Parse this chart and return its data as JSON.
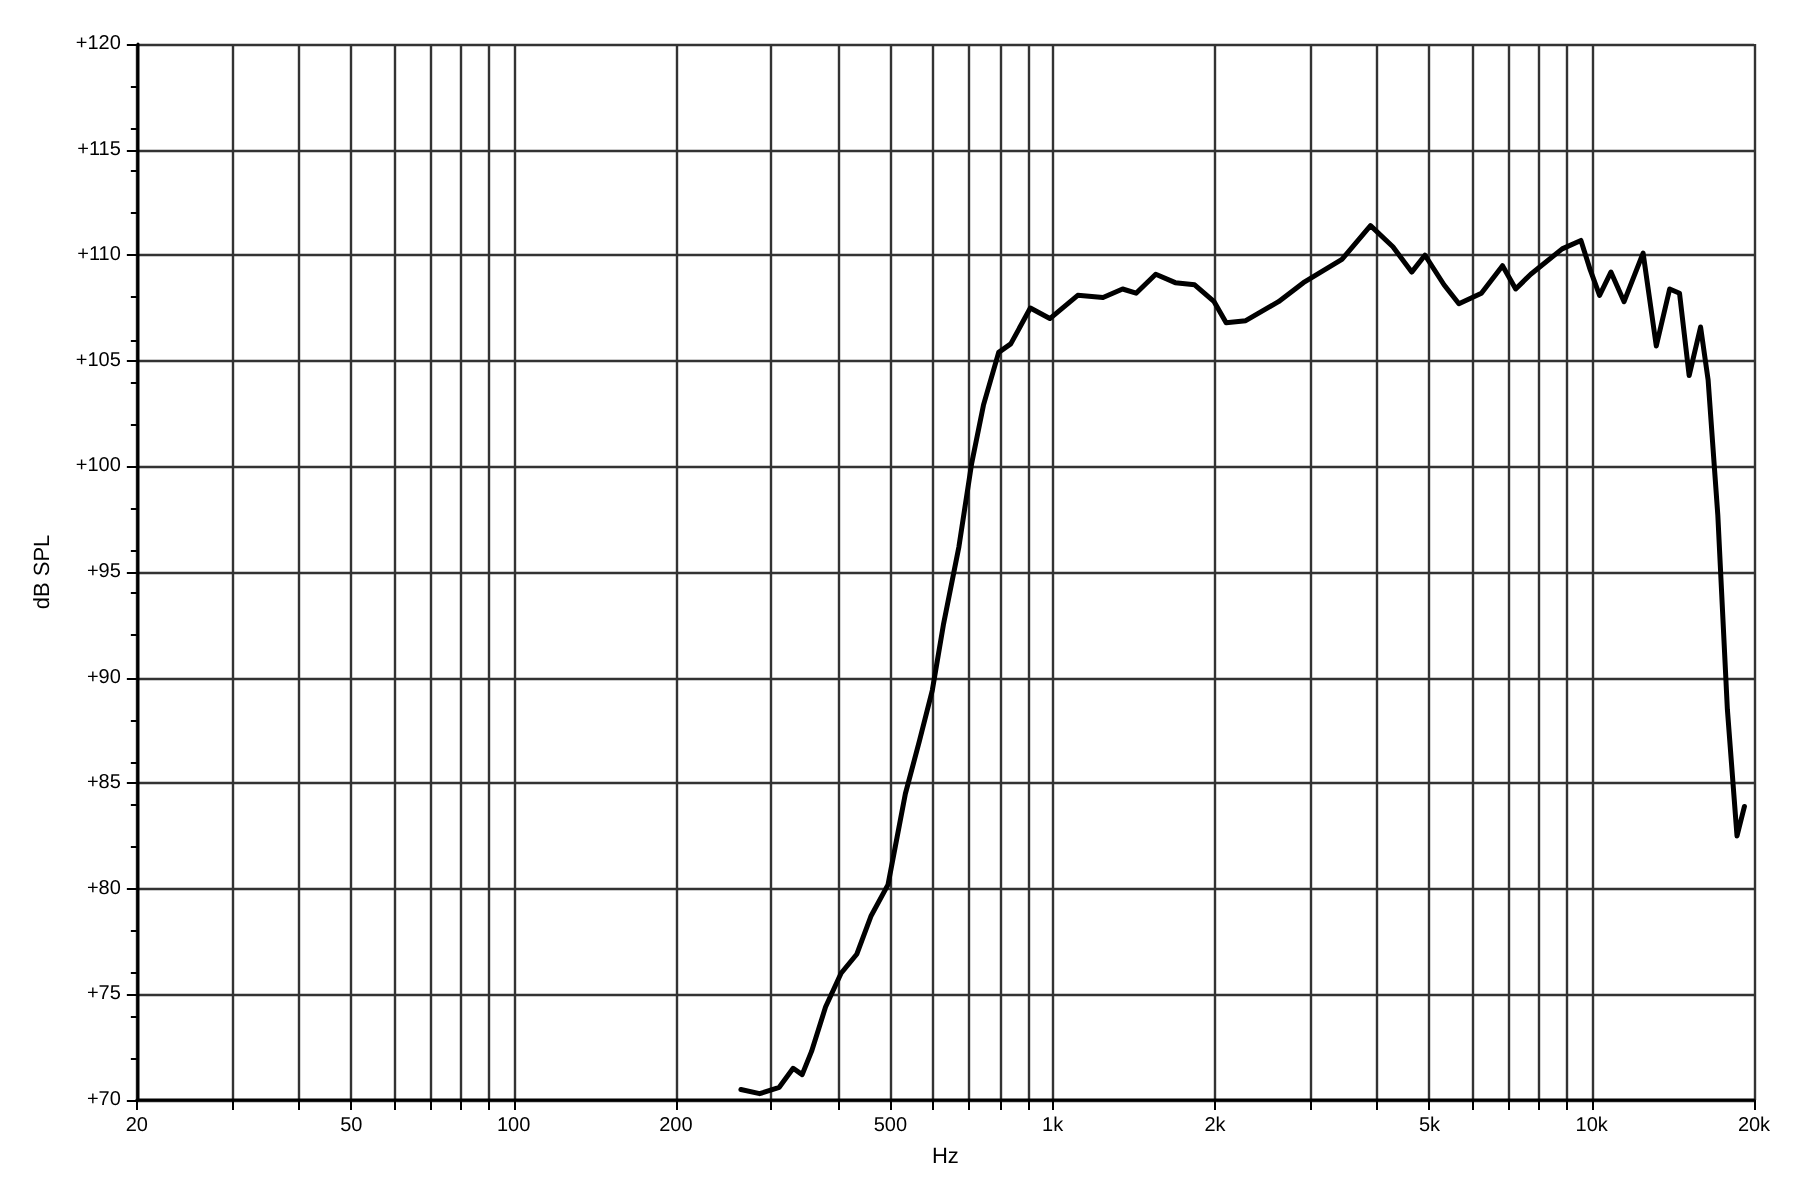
{
  "chart_data": {
    "type": "line",
    "xlabel": "Hz",
    "ylabel": "dB SPL",
    "log": "x",
    "grid": true,
    "marker": "none",
    "line_style": "solid",
    "xlim": [
      20,
      20000
    ],
    "ylim": [
      70,
      120
    ],
    "xticks": [
      20,
      {
        "value": 30,
        "label": null
      },
      {
        "value": 40,
        "label": null
      },
      50,
      {
        "value": 60,
        "label": null
      },
      {
        "value": 70,
        "label": null
      },
      {
        "value": 80,
        "label": null
      },
      {
        "value": 90,
        "label": null
      },
      100,
      200,
      {
        "value": 300,
        "label": null
      },
      {
        "value": 400,
        "label": null
      },
      500,
      {
        "value": 600,
        "label": null
      },
      {
        "value": 700,
        "label": null
      },
      {
        "value": 800,
        "label": null
      },
      {
        "value": 900,
        "label": null
      },
      {
        "value": 1000,
        "label": "1k"
      },
      {
        "value": 2000,
        "label": "2k"
      },
      {
        "value": 3000,
        "label": null
      },
      {
        "value": 4000,
        "label": null
      },
      {
        "value": 5000,
        "label": "5k"
      },
      {
        "value": 6000,
        "label": null
      },
      {
        "value": 7000,
        "label": null
      },
      {
        "value": 8000,
        "label": null
      },
      {
        "value": 9000,
        "label": null
      },
      {
        "value": 10000,
        "label": "10k"
      },
      {
        "value": 20000,
        "label": "20k"
      }
    ],
    "yticks": [
      {
        "value": 70,
        "label": "+70"
      },
      {
        "value": 75,
        "label": "+75"
      },
      {
        "value": 80,
        "label": "+80"
      },
      {
        "value": 85,
        "label": "+85"
      },
      {
        "value": 90,
        "label": "+90"
      },
      {
        "value": 95,
        "label": "+95"
      },
      {
        "value": 100,
        "label": "+100"
      },
      {
        "value": 105,
        "label": "+105"
      },
      {
        "value": 110,
        "label": "+110"
      },
      {
        "value": 115,
        "label": "+115"
      },
      {
        "value": 120,
        "label": "+120"
      }
    ],
    "series": [
      {
        "color": "#000000",
        "x": [
          264,
          286,
          311,
          330,
          343,
          357,
          379,
          405,
          433,
          460,
          495,
          533,
          566,
          598,
          627,
          670,
          707,
          744,
          794,
          836,
          909,
          988,
          1113,
          1240,
          1348,
          1428,
          1553,
          1688,
          1834,
          1993,
          2098,
          2281,
          2624,
          2918,
          3440,
          3887,
          4277,
          4635,
          4905,
          5320,
          5670,
          6242,
          6831,
          7227,
          7707,
          8814,
          9549,
          9937,
          10340,
          10854,
          11482,
          12454,
          13175,
          13950,
          14550,
          15160,
          15920,
          16440,
          17135,
          17850,
          18600,
          19200
        ],
        "values": [
          70.5,
          70.3,
          70.6,
          71.5,
          71.2,
          72.3,
          74.4,
          76.0,
          76.9,
          78.7,
          80.2,
          84.5,
          87.0,
          89.4,
          92.5,
          96.2,
          100.1,
          102.9,
          105.4,
          105.8,
          107.5,
          107.0,
          108.1,
          108.0,
          108.4,
          108.2,
          109.1,
          108.7,
          108.6,
          107.8,
          106.8,
          106.9,
          107.8,
          108.7,
          109.8,
          111.4,
          110.4,
          109.2,
          110.0,
          108.6,
          107.7,
          108.2,
          109.5,
          108.4,
          109.1,
          110.3,
          110.7,
          109.3,
          108.1,
          109.2,
          107.8,
          110.1,
          105.7,
          108.4,
          108.2,
          104.3,
          106.6,
          104.1,
          97.7,
          88.5,
          82.5,
          83.9
        ]
      }
    ]
  }
}
